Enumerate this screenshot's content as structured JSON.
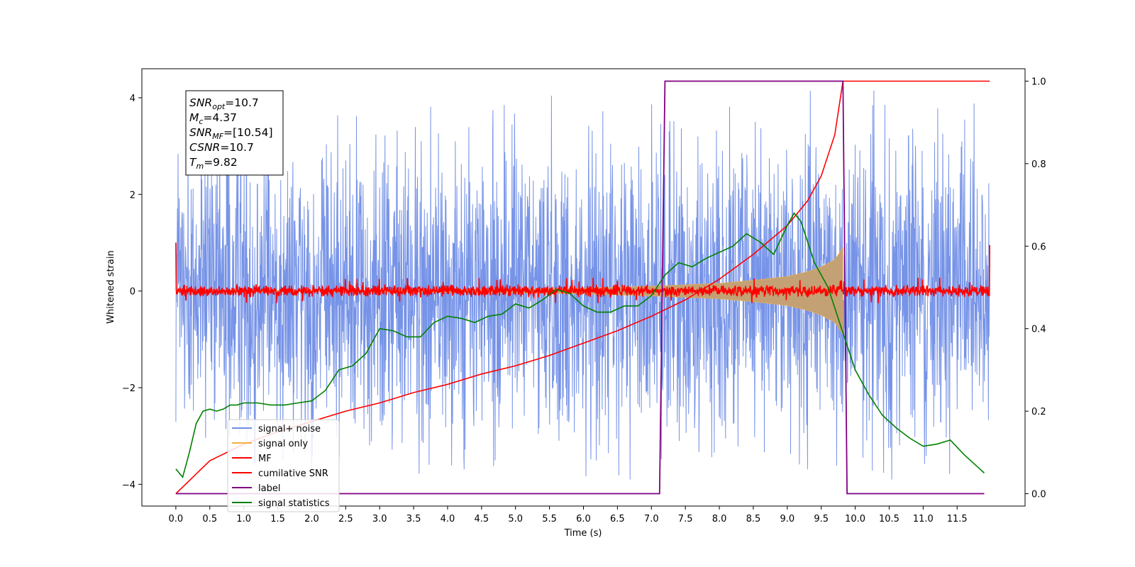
{
  "chart_data": {
    "type": "line",
    "xlabel": "Time (s)",
    "ylabel": "Whitened strain",
    "xlim": [
      -0.5,
      12.5
    ],
    "ylim": [
      -4.45,
      4.6
    ],
    "y2lim": [
      -0.03,
      1.03
    ],
    "x_ticks": [
      0.0,
      0.5,
      1.0,
      1.5,
      2.0,
      2.5,
      3.0,
      3.5,
      4.0,
      4.5,
      5.0,
      5.5,
      6.0,
      6.5,
      7.0,
      7.5,
      8.0,
      8.5,
      9.0,
      9.5,
      10.0,
      10.5,
      11.0,
      11.5
    ],
    "x_tick_labels": [
      "0.0",
      "0.5",
      "1.0",
      "1.5",
      "2.0",
      "2.5",
      "3.0",
      "3.5",
      "4.0",
      "4.5",
      "5.0",
      "5.5",
      "6.0",
      "6.5",
      "7.0",
      "7.5",
      "8.0",
      "8.5",
      "9.0",
      "9.5",
      "10.0",
      "10.5",
      "11.0",
      "11.5"
    ],
    "y_ticks": [
      -4,
      -2,
      0,
      2,
      4
    ],
    "y_tick_labels": [
      "−4",
      "−2",
      "0",
      "2",
      "4"
    ],
    "y2_ticks": [
      0.0,
      0.2,
      0.4,
      0.6,
      0.8,
      1.0
    ],
    "y2_tick_labels": [
      "0.0",
      "0.2",
      "0.4",
      "0.6",
      "0.8",
      "1.0"
    ],
    "grid": false,
    "legend_position": "lower-left",
    "info_box": {
      "lines": [
        {
          "name": "SNR",
          "sub": "opt",
          "value": "=10.7"
        },
        {
          "name": "M",
          "sub": "c",
          "value": "=4.37"
        },
        {
          "name": "SNR",
          "sub": "MF",
          "value": "=[10.54]"
        },
        {
          "name": "CSNR",
          "sub": "",
          "value": "=10.7"
        },
        {
          "name": "T",
          "sub": "m",
          "value": "=9.82"
        }
      ]
    },
    "series": [
      {
        "name": "signal+ noise",
        "axis": "left",
        "kind": "noise",
        "color": "#6f8de6",
        "x_range": [
          0.0,
          11.98
        ],
        "band": [
          -2.1,
          2.1
        ],
        "spike_max": 4.15,
        "spike_min": -3.9
      },
      {
        "name": "signal only",
        "axis": "left",
        "kind": "chirp_envelope",
        "color": "#f5b041",
        "fill": "#c4a174",
        "x_range": [
          0.0,
          9.82
        ],
        "envelope": {
          "x": [
            0.0,
            3.0,
            5.0,
            6.0,
            7.0,
            8.0,
            8.5,
            9.0,
            9.3,
            9.5,
            9.7,
            9.82
          ],
          "y": [
            0.01,
            0.02,
            0.04,
            0.06,
            0.1,
            0.16,
            0.22,
            0.3,
            0.4,
            0.5,
            0.65,
            0.9
          ]
        }
      },
      {
        "name": "MF",
        "axis": "left",
        "kind": "noise",
        "color": "#ff0000",
        "x_range": [
          0.0,
          11.98
        ],
        "band": [
          -0.15,
          0.15
        ],
        "spike_max": 0.3,
        "spike_min": -0.25,
        "edges": {
          "start": 1.0,
          "end": 0.95
        }
      },
      {
        "name": "cumilative SNR",
        "axis": "right",
        "kind": "line",
        "color": "#ff0000",
        "x": [
          0.0,
          0.5,
          1.0,
          1.5,
          2.0,
          2.5,
          3.0,
          3.5,
          4.0,
          4.5,
          5.0,
          5.5,
          6.0,
          6.5,
          7.0,
          7.5,
          8.0,
          8.5,
          9.0,
          9.3,
          9.5,
          9.7,
          9.82,
          9.83,
          11.98
        ],
        "y": [
          0.0,
          0.08,
          0.12,
          0.15,
          0.175,
          0.2,
          0.22,
          0.245,
          0.265,
          0.29,
          0.31,
          0.335,
          0.365,
          0.395,
          0.43,
          0.47,
          0.52,
          0.58,
          0.65,
          0.71,
          0.77,
          0.87,
          1.0,
          1.0,
          1.0
        ]
      },
      {
        "name": "label",
        "axis": "right",
        "kind": "line",
        "color": "#800080",
        "x": [
          0.0,
          7.12,
          7.2,
          9.82,
          9.88,
          11.9
        ],
        "y": [
          0.0,
          0.0,
          1.0,
          1.0,
          0.0,
          0.0
        ]
      },
      {
        "name": "signal statistics",
        "axis": "right",
        "kind": "line",
        "color": "#008000",
        "x": [
          0.0,
          0.1,
          0.2,
          0.3,
          0.4,
          0.5,
          0.6,
          0.7,
          0.8,
          0.9,
          1.0,
          1.2,
          1.4,
          1.6,
          1.8,
          2.0,
          2.2,
          2.4,
          2.6,
          2.8,
          3.0,
          3.2,
          3.4,
          3.6,
          3.8,
          4.0,
          4.2,
          4.4,
          4.6,
          4.8,
          5.0,
          5.2,
          5.4,
          5.6,
          5.8,
          6.0,
          6.2,
          6.4,
          6.6,
          6.8,
          7.0,
          7.2,
          7.4,
          7.6,
          7.8,
          8.0,
          8.2,
          8.4,
          8.6,
          8.8,
          9.0,
          9.1,
          9.2,
          9.4,
          9.6,
          9.8,
          10.0,
          10.2,
          10.4,
          10.6,
          10.8,
          11.0,
          11.2,
          11.4,
          11.6,
          11.8,
          11.9
        ],
        "y": [
          0.06,
          0.04,
          0.1,
          0.17,
          0.2,
          0.205,
          0.2,
          0.205,
          0.215,
          0.215,
          0.22,
          0.22,
          0.215,
          0.215,
          0.22,
          0.225,
          0.25,
          0.3,
          0.31,
          0.34,
          0.4,
          0.395,
          0.38,
          0.38,
          0.415,
          0.43,
          0.425,
          0.415,
          0.43,
          0.435,
          0.46,
          0.45,
          0.47,
          0.495,
          0.485,
          0.455,
          0.44,
          0.44,
          0.455,
          0.455,
          0.48,
          0.53,
          0.56,
          0.55,
          0.57,
          0.585,
          0.6,
          0.63,
          0.61,
          0.58,
          0.65,
          0.68,
          0.66,
          0.56,
          0.5,
          0.4,
          0.3,
          0.24,
          0.19,
          0.16,
          0.135,
          0.115,
          0.12,
          0.13,
          0.095,
          0.065,
          0.05
        ]
      }
    ]
  }
}
